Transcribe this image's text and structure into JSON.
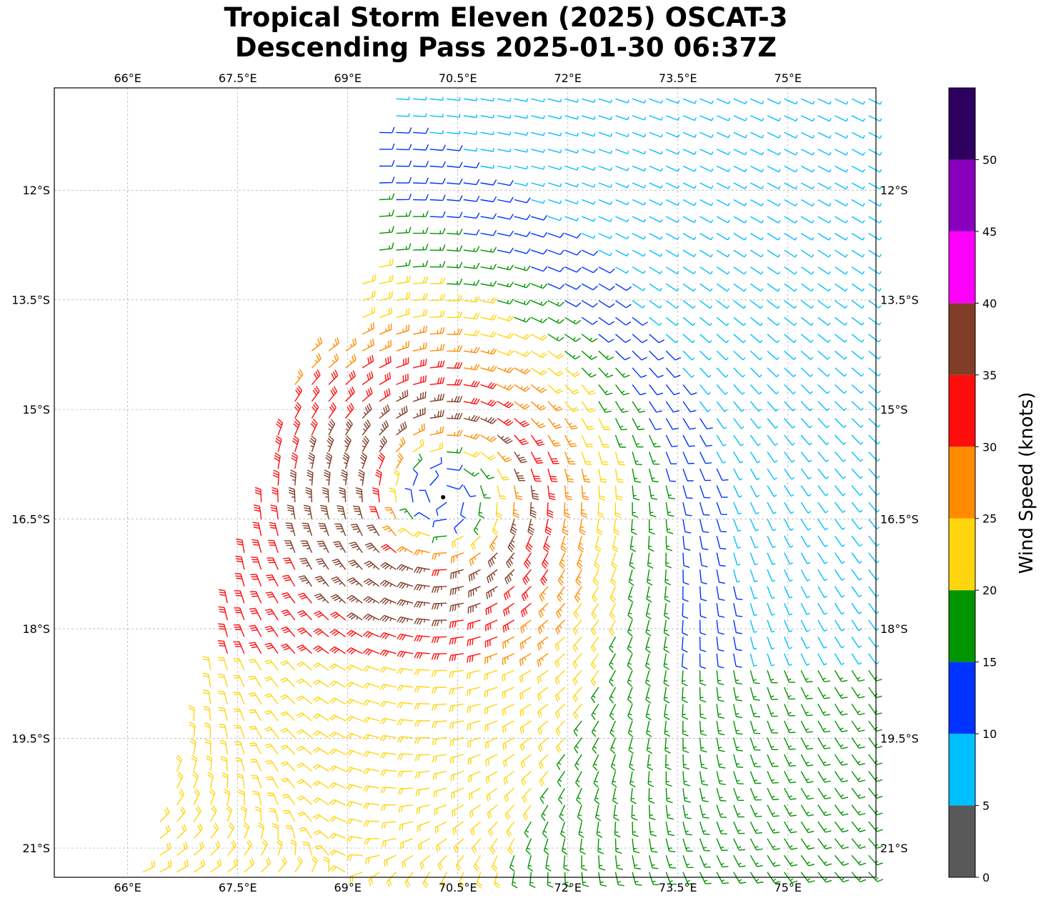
{
  "title": {
    "line1": "Tropical Storm Eleven (2025) OSCAT-3",
    "line2": "Descending Pass 2025-01-30 06:37Z"
  },
  "map": {
    "lon_range": [
      65.0,
      76.2
    ],
    "lat_range": [
      -21.4,
      -10.6
    ],
    "lon_ticks": [
      {
        "value": 66.0,
        "label": "66°E"
      },
      {
        "value": 67.5,
        "label": "67.5°E"
      },
      {
        "value": 69.0,
        "label": "69°E"
      },
      {
        "value": 70.5,
        "label": "70.5°E"
      },
      {
        "value": 72.0,
        "label": "72°E"
      },
      {
        "value": 73.5,
        "label": "73.5°E"
      },
      {
        "value": 75.0,
        "label": "75°E"
      }
    ],
    "lat_ticks": [
      {
        "value": -12.0,
        "label": "12°S"
      },
      {
        "value": -13.5,
        "label": "13.5°S"
      },
      {
        "value": -15.0,
        "label": "15°S"
      },
      {
        "value": -16.5,
        "label": "16.5°S"
      },
      {
        "value": -18.0,
        "label": "18°S"
      },
      {
        "value": -19.5,
        "label": "19.5°S"
      },
      {
        "value": -21.0,
        "label": "21°S"
      }
    ],
    "grid": true,
    "storm_center": {
      "lon": 70.3,
      "lat": -16.2
    }
  },
  "colorbar": {
    "label": "Wind Speed (knots)",
    "ticks": [
      "0",
      "5",
      "10",
      "15",
      "20",
      "25",
      "30",
      "35",
      "40",
      "45",
      "50"
    ],
    "bins": [
      {
        "min": 0,
        "max": 5,
        "color": "#595959"
      },
      {
        "min": 5,
        "max": 10,
        "color": "#00bfff"
      },
      {
        "min": 10,
        "max": 15,
        "color": "#0033ff"
      },
      {
        "min": 15,
        "max": 20,
        "color": "#009400"
      },
      {
        "min": 20,
        "max": 25,
        "color": "#ffd50d"
      },
      {
        "min": 25,
        "max": 30,
        "color": "#ff8c00"
      },
      {
        "min": 30,
        "max": 35,
        "color": "#ff0d0d"
      },
      {
        "min": 35,
        "max": 40,
        "color": "#7f3d28"
      },
      {
        "min": 40,
        "max": 45,
        "color": "#ff00ff"
      },
      {
        "min": 45,
        "max": 50,
        "color": "#8800bb"
      },
      {
        "min": 50,
        "max": 55,
        "color": "#2d0060"
      }
    ]
  }
}
